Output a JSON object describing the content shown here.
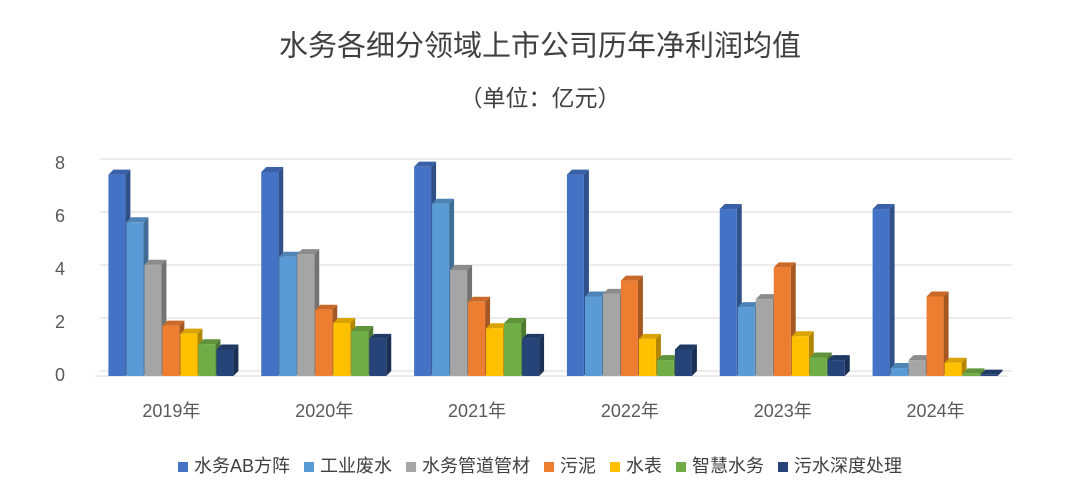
{
  "chart_data": {
    "type": "bar",
    "title": "水务各细分领域上市公司历年净利润均值",
    "subtitle": "（单位：亿元）",
    "categories": [
      "2019年",
      "2020年",
      "2021年",
      "2022年",
      "2023年",
      "2024年"
    ],
    "series": [
      {
        "name": "水务AB方阵",
        "color": "#4472c4",
        "values": [
          7.6,
          7.7,
          7.9,
          7.6,
          6.3,
          6.3
        ]
      },
      {
        "name": "工业废水",
        "color": "#5b9bd5",
        "values": [
          5.8,
          4.5,
          6.5,
          3.0,
          2.6,
          0.3
        ]
      },
      {
        "name": "水务管道管材",
        "color": "#a5a5a5",
        "values": [
          4.2,
          4.6,
          4.0,
          3.1,
          2.9,
          0.6
        ]
      },
      {
        "name": "污泥",
        "color": "#ed7d31",
        "values": [
          1.9,
          2.5,
          2.8,
          3.6,
          4.1,
          3.0
        ]
      },
      {
        "name": "水表",
        "color": "#ffc000",
        "values": [
          1.6,
          2.0,
          1.8,
          1.4,
          1.5,
          0.5
        ]
      },
      {
        "name": "智慧水务",
        "color": "#70ad47",
        "values": [
          1.2,
          1.7,
          2.0,
          0.6,
          0.7,
          0.1
        ]
      },
      {
        "name": "污水深度处理",
        "color": "#264478",
        "values": [
          1.0,
          1.4,
          1.4,
          1.0,
          0.6,
          0.05
        ]
      }
    ],
    "ylim": [
      0,
      8
    ],
    "yticks": [
      0,
      2,
      4,
      6,
      8
    ],
    "grid": true,
    "legend": "bottom"
  }
}
